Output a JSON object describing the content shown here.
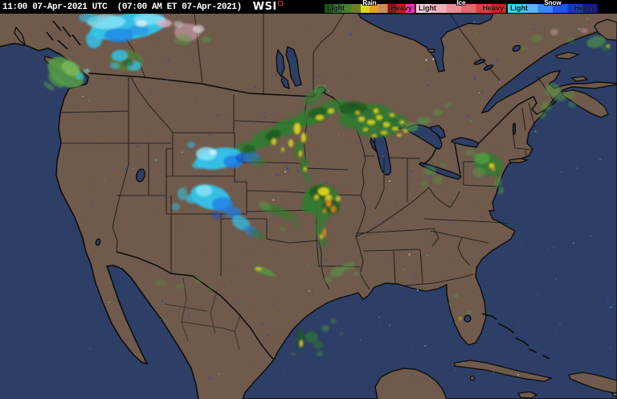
{
  "header": {
    "timestamp": "11:00 07-Apr-2021 UTC  (07:00 AM ET 07-Apr-2021)",
    "logo": "WSI"
  },
  "legend": {
    "groups": [
      {
        "name": "Rain",
        "light_label": "Light",
        "heavy_label": "Heavy",
        "stops": [
          "#1f4f1f",
          "#2e6e2e",
          "#48802e",
          "#6f7f28",
          "#d8d820",
          "#e8a020",
          "#c8905c",
          "#8a1515",
          "#c41818",
          "#e838b8"
        ]
      },
      {
        "name": "Ice",
        "light_label": "Light",
        "heavy_label": "Heavy",
        "stops": [
          "#f2cdd5",
          "#eeb0ba",
          "#e88f96",
          "#e06a6e",
          "#d84046",
          "#cc2026"
        ]
      },
      {
        "name": "Snow",
        "light_label": "Light",
        "heavy_label": "Heavy",
        "stops": [
          "#35d8f8",
          "#58b8f8",
          "#3888f0",
          "#2058d8",
          "#1838b0",
          "#101890"
        ]
      }
    ]
  },
  "map": {
    "colors": {
      "ocean": "#2d3f66",
      "land": "#6f5a4b",
      "coast": "#0d0d0d",
      "state_border": "#1c1c1c"
    },
    "palette": {
      "g1": "#1e5a1e",
      "g2": "#2f7d2f",
      "g3": "#55a045",
      "g4": "#79b859",
      "ol": "#5a7a3a",
      "y": "#d8cf1e",
      "o": "#e08818",
      "c": "#2fc8f0",
      "pc": "#8ae4f8",
      "b": "#1f7fe8",
      "db": "#1b50c8",
      "w": "#f2f2f2",
      "p": "#eab2c4"
    },
    "radar_blobs": [
      [
        160,
        33,
        48,
        16,
        -8,
        "c",
        0.92
      ],
      [
        132,
        27,
        24,
        9,
        0,
        "pc",
        0.8
      ],
      [
        186,
        24,
        20,
        7,
        0,
        "pc",
        0.75
      ],
      [
        148,
        44,
        18,
        9,
        0,
        "b",
        0.7
      ],
      [
        117,
        49,
        10,
        11,
        0,
        "c",
        0.8
      ],
      [
        172,
        38,
        14,
        6,
        0,
        "b",
        0.5
      ],
      [
        205,
        29,
        9,
        5,
        0,
        "p",
        0.75
      ],
      [
        176,
        29,
        7,
        4,
        0,
        "w",
        0.7
      ],
      [
        110,
        22,
        12,
        6,
        0,
        "c",
        0.6
      ],
      [
        233,
        40,
        16,
        11,
        0,
        "p",
        0.5
      ],
      [
        228,
        49,
        11,
        7,
        0,
        "g3",
        0.45
      ],
      [
        247,
        36,
        7,
        5,
        0,
        "w",
        0.55
      ],
      [
        257,
        49,
        6,
        4,
        0,
        "g3",
        0.45
      ],
      [
        222,
        30,
        6,
        4,
        0,
        "w",
        0.4
      ],
      [
        157,
        75,
        21,
        13,
        0,
        "ol",
        0.85
      ],
      [
        149,
        69,
        10,
        7,
        0,
        "c",
        0.8
      ],
      [
        167,
        82,
        9,
        6,
        0,
        "c",
        0.7
      ],
      [
        159,
        78,
        7,
        5,
        0,
        "g1",
        0.55
      ],
      [
        143,
        82,
        6,
        4,
        0,
        "c",
        0.5
      ],
      [
        82,
        90,
        25,
        16,
        35,
        "g3",
        0.85
      ],
      [
        88,
        85,
        12,
        8,
        30,
        "g4",
        0.9
      ],
      [
        70,
        100,
        12,
        6,
        40,
        "g3",
        0.7
      ],
      [
        61,
        107,
        8,
        3,
        35,
        "g3",
        0.55
      ],
      [
        99,
        95,
        5,
        4,
        0,
        "c",
        0.6
      ],
      [
        108,
        88,
        4,
        3,
        0,
        "pc",
        0.5
      ],
      [
        305,
        188,
        16,
        11,
        -30,
        "g2",
        0.8
      ],
      [
        330,
        172,
        20,
        10,
        -25,
        "g2",
        0.85
      ],
      [
        358,
        158,
        22,
        10,
        -20,
        "g2",
        0.85
      ],
      [
        388,
        145,
        22,
        10,
        -15,
        "g2",
        0.85
      ],
      [
        415,
        133,
        20,
        9,
        -12,
        "g2",
        0.8
      ],
      [
        340,
        168,
        10,
        6,
        -25,
        "g1",
        0.9
      ],
      [
        395,
        140,
        12,
        6,
        -15,
        "g1",
        0.85
      ],
      [
        310,
        186,
        8,
        6,
        0,
        "g1",
        0.7
      ],
      [
        390,
        121,
        14,
        8,
        -40,
        "g2",
        0.65
      ],
      [
        399,
        111,
        8,
        5,
        -30,
        "g3",
        0.55
      ],
      [
        370,
        160,
        4,
        7,
        0,
        "y",
        1
      ],
      [
        378,
        171,
        3,
        6,
        0,
        "y",
        0.95
      ],
      [
        362,
        178,
        3,
        5,
        0,
        "y",
        0.9
      ],
      [
        341,
        176,
        3,
        4,
        0,
        "y",
        0.9
      ],
      [
        398,
        146,
        5,
        3,
        0,
        "y",
        0.95
      ],
      [
        412,
        138,
        4,
        3,
        0,
        "y",
        0.9
      ],
      [
        352,
        186,
        2,
        3,
        0,
        "y",
        0.8
      ],
      [
        455,
        145,
        34,
        15,
        -8,
        "g2",
        0.85
      ],
      [
        470,
        160,
        27,
        11,
        0,
        "g2",
        0.8
      ],
      [
        440,
        134,
        17,
        8,
        0,
        "g1",
        0.8
      ],
      [
        490,
        150,
        17,
        9,
        0,
        "g2",
        0.8
      ],
      [
        510,
        158,
        11,
        6,
        0,
        "g3",
        0.6
      ],
      [
        528,
        150,
        9,
        5,
        0,
        "g3",
        0.5
      ],
      [
        545,
        140,
        7,
        4,
        0,
        "g3",
        0.45
      ],
      [
        558,
        131,
        5,
        3,
        0,
        "g3",
        0.4
      ],
      [
        450,
        148,
        4,
        3,
        0,
        "y",
        0.95
      ],
      [
        462,
        152,
        5,
        3,
        0,
        "y",
        0.95
      ],
      [
        472,
        146,
        4,
        3,
        0,
        "y",
        0.95
      ],
      [
        481,
        155,
        4,
        3,
        0,
        "y",
        0.95
      ],
      [
        492,
        160,
        4,
        2,
        0,
        "y",
        0.95
      ],
      [
        468,
        138,
        3,
        3,
        0,
        "y",
        0.95
      ],
      [
        500,
        152,
        3,
        2,
        0,
        "y",
        0.9
      ],
      [
        488,
        143,
        3,
        2,
        0,
        "y",
        0.9
      ],
      [
        455,
        161,
        3,
        2,
        0,
        "y",
        0.9
      ],
      [
        478,
        165,
        4,
        2,
        0,
        "y",
        0.9
      ],
      [
        466,
        169,
        3,
        2,
        0,
        "y",
        0.85
      ],
      [
        505,
        163,
        3,
        2,
        0,
        "y",
        0.85
      ],
      [
        497,
        168,
        3,
        2,
        0,
        "y",
        0.85
      ],
      [
        445,
        140,
        3,
        2,
        0,
        "y",
        0.85
      ],
      [
        372,
        186,
        6,
        11,
        8,
        "g2",
        0.75
      ],
      [
        378,
        205,
        5,
        11,
        4,
        "g2",
        0.7
      ],
      [
        383,
        221,
        4,
        8,
        0,
        "g2",
        0.6
      ],
      [
        374,
        191,
        2,
        4,
        0,
        "y",
        0.9
      ],
      [
        380,
        210,
        2,
        3,
        0,
        "y",
        0.85
      ],
      [
        272,
        197,
        29,
        13,
        -10,
        "c",
        0.92
      ],
      [
        257,
        191,
        13,
        8,
        0,
        "pc",
        0.85
      ],
      [
        290,
        201,
        12,
        8,
        0,
        "b",
        0.85
      ],
      [
        301,
        196,
        8,
        6,
        0,
        "db",
        0.7
      ],
      [
        247,
        205,
        8,
        5,
        0,
        "c",
        0.7
      ],
      [
        265,
        189,
        4,
        3,
        0,
        "w",
        0.7
      ],
      [
        313,
        196,
        11,
        7,
        0,
        "b",
        0.55
      ],
      [
        322,
        201,
        9,
        6,
        0,
        "g2",
        0.5
      ],
      [
        238,
        180,
        5,
        4,
        0,
        "c",
        0.5
      ],
      [
        262,
        245,
        25,
        15,
        15,
        "c",
        0.92
      ],
      [
        277,
        254,
        13,
        9,
        0,
        "b",
        0.8
      ],
      [
        254,
        237,
        10,
        7,
        0,
        "pc",
        0.85
      ],
      [
        239,
        247,
        8,
        6,
        0,
        "c",
        0.7
      ],
      [
        290,
        264,
        10,
        7,
        0,
        "b",
        0.7
      ],
      [
        300,
        277,
        12,
        8,
        30,
        "c",
        0.7
      ],
      [
        312,
        287,
        10,
        6,
        30,
        "b",
        0.6
      ],
      [
        321,
        291,
        10,
        5,
        20,
        "g2",
        0.55
      ],
      [
        334,
        259,
        8,
        5,
        0,
        "g2",
        0.5
      ],
      [
        227,
        241,
        6,
        8,
        0,
        "c",
        0.55
      ],
      [
        219,
        257,
        5,
        5,
        0,
        "c",
        0.45
      ],
      [
        270,
        268,
        7,
        5,
        0,
        "db",
        0.5
      ],
      [
        345,
        262,
        13,
        6,
        15,
        "g2",
        0.6
      ],
      [
        360,
        269,
        10,
        5,
        10,
        "g2",
        0.55
      ],
      [
        330,
        256,
        8,
        5,
        20,
        "g3",
        0.5
      ],
      [
        400,
        248,
        23,
        19,
        0,
        "g2",
        0.85
      ],
      [
        398,
        239,
        13,
        9,
        0,
        "g1",
        0.9
      ],
      [
        412,
        257,
        11,
        9,
        0,
        "g1",
        0.8
      ],
      [
        385,
        257,
        10,
        8,
        0,
        "g2",
        0.7
      ],
      [
        401,
        269,
        10,
        7,
        0,
        "g2",
        0.7
      ],
      [
        403,
        238,
        7,
        5,
        0,
        "y",
        1
      ],
      [
        409,
        246,
        4,
        4,
        0,
        "y",
        0.95
      ],
      [
        394,
        245,
        3,
        3,
        0,
        "y",
        0.9
      ],
      [
        409,
        252,
        3,
        5,
        0,
        "o",
        1
      ],
      [
        415,
        260,
        3,
        4,
        0,
        "o",
        0.9
      ],
      [
        404,
        262,
        2,
        3,
        0,
        "o",
        0.85
      ],
      [
        421,
        247,
        3,
        3,
        0,
        "y",
        0.8
      ],
      [
        398,
        284,
        6,
        11,
        5,
        "g2",
        0.7
      ],
      [
        402,
        299,
        5,
        8,
        0,
        "g2",
        0.6
      ],
      [
        404,
        289,
        2,
        5,
        0,
        "o",
        0.95
      ],
      [
        400,
        294,
        2,
        3,
        0,
        "y",
        0.85
      ],
      [
        370,
        280,
        5,
        4,
        0,
        "g2",
        0.4
      ],
      [
        352,
        285,
        4,
        3,
        0,
        "g3",
        0.35
      ],
      [
        535,
        212,
        8,
        6,
        0,
        "g3",
        0.45
      ],
      [
        545,
        224,
        6,
        5,
        0,
        "g3",
        0.4
      ],
      [
        528,
        228,
        5,
        4,
        0,
        "g3",
        0.35
      ],
      [
        552,
        205,
        4,
        3,
        0,
        "g3",
        0.3
      ],
      [
        608,
        204,
        19,
        13,
        20,
        "g2",
        0.8
      ],
      [
        600,
        197,
        10,
        7,
        0,
        "g3",
        0.8
      ],
      [
        615,
        212,
        10,
        7,
        0,
        "g2",
        0.7
      ],
      [
        596,
        214,
        8,
        6,
        0,
        "g3",
        0.5
      ],
      [
        612,
        206,
        3,
        3,
        0,
        "y",
        1
      ],
      [
        614,
        210,
        2,
        2,
        0,
        "o",
        0.9
      ],
      [
        586,
        190,
        6,
        4,
        0,
        "g3",
        0.4
      ],
      [
        620,
        226,
        4,
        7,
        15,
        "g3",
        0.6
      ],
      [
        624,
        237,
        3,
        5,
        10,
        "g3",
        0.5
      ],
      [
        688,
        112,
        10,
        8,
        0,
        "g3",
        0.5
      ],
      [
        697,
        120,
        8,
        6,
        0,
        "g3",
        0.5
      ],
      [
        680,
        132,
        7,
        6,
        0,
        "g3",
        0.45
      ],
      [
        710,
        118,
        6,
        5,
        0,
        "g3",
        0.4
      ],
      [
        675,
        143,
        5,
        4,
        0,
        "g3",
        0.4
      ],
      [
        712,
        130,
        5,
        4,
        0,
        "g3",
        0.35
      ],
      [
        742,
        52,
        12,
        7,
        -15,
        "g3",
        0.6
      ],
      [
        754,
        60,
        6,
        4,
        0,
        "g2",
        0.5
      ],
      [
        757,
        57,
        2,
        2,
        0,
        "y",
        0.85
      ],
      [
        668,
        48,
        7,
        5,
        0,
        "g3",
        0.4
      ],
      [
        690,
        40,
        5,
        4,
        0,
        "p",
        0.4
      ],
      [
        710,
        50,
        5,
        3,
        0,
        "g3",
        0.35
      ],
      [
        727,
        38,
        5,
        3,
        0,
        "p",
        0.35
      ],
      [
        652,
        60,
        4,
        3,
        0,
        "g3",
        0.3
      ],
      [
        328,
        337,
        13,
        4,
        18,
        "g3",
        0.7
      ],
      [
        322,
        334,
        4,
        2,
        0,
        "y",
        0.85
      ],
      [
        340,
        342,
        5,
        2,
        15,
        "g3",
        0.5
      ],
      [
        420,
        338,
        10,
        6,
        -20,
        "g3",
        0.5
      ],
      [
        434,
        331,
        8,
        5,
        -15,
        "g3",
        0.45
      ],
      [
        408,
        348,
        5,
        4,
        0,
        "g3",
        0.4
      ],
      [
        445,
        340,
        4,
        3,
        0,
        "g3",
        0.35
      ],
      [
        200,
        352,
        8,
        4,
        0,
        "g3",
        0.3
      ],
      [
        225,
        356,
        6,
        3,
        0,
        "g3",
        0.3
      ],
      [
        246,
        349,
        5,
        3,
        0,
        "g3",
        0.3
      ],
      [
        262,
        358,
        4,
        2,
        0,
        "g3",
        0.25
      ],
      [
        374,
        421,
        4,
        13,
        0,
        "g1",
        0.8
      ],
      [
        375,
        427,
        2,
        4,
        0,
        "y",
        0.95
      ],
      [
        388,
        419,
        8,
        7,
        0,
        "g2",
        0.6
      ],
      [
        396,
        429,
        6,
        5,
        0,
        "g2",
        0.5
      ],
      [
        405,
        408,
        5,
        4,
        0,
        "g3",
        0.45
      ],
      [
        415,
        399,
        4,
        3,
        0,
        "g3",
        0.4
      ],
      [
        398,
        440,
        4,
        3,
        0,
        "g3",
        0.4
      ],
      [
        365,
        440,
        3,
        2,
        0,
        "g3",
        0.35
      ],
      [
        425,
        415,
        3,
        2,
        0,
        "g3",
        0.3
      ],
      [
        567,
        368,
        3,
        2,
        0,
        "g3",
        0.5
      ],
      [
        584,
        388,
        3,
        2,
        0,
        "g3",
        0.5
      ],
      [
        573,
        396,
        2,
        2,
        0,
        "y",
        0.6
      ],
      [
        560,
        378,
        2,
        2,
        0,
        "g3",
        0.4
      ]
    ],
    "speckles": {
      "seed": 1337,
      "count": 300,
      "x_min": 100,
      "x_max": 760,
      "y_min": 22,
      "y_max": 470,
      "colors": [
        [
          "#2b46b8",
          0.66
        ],
        [
          "#3f8f3f",
          0.16
        ],
        [
          "#35c8f0",
          0.1
        ],
        [
          "#e8e8e8",
          0.08
        ]
      ]
    }
  }
}
